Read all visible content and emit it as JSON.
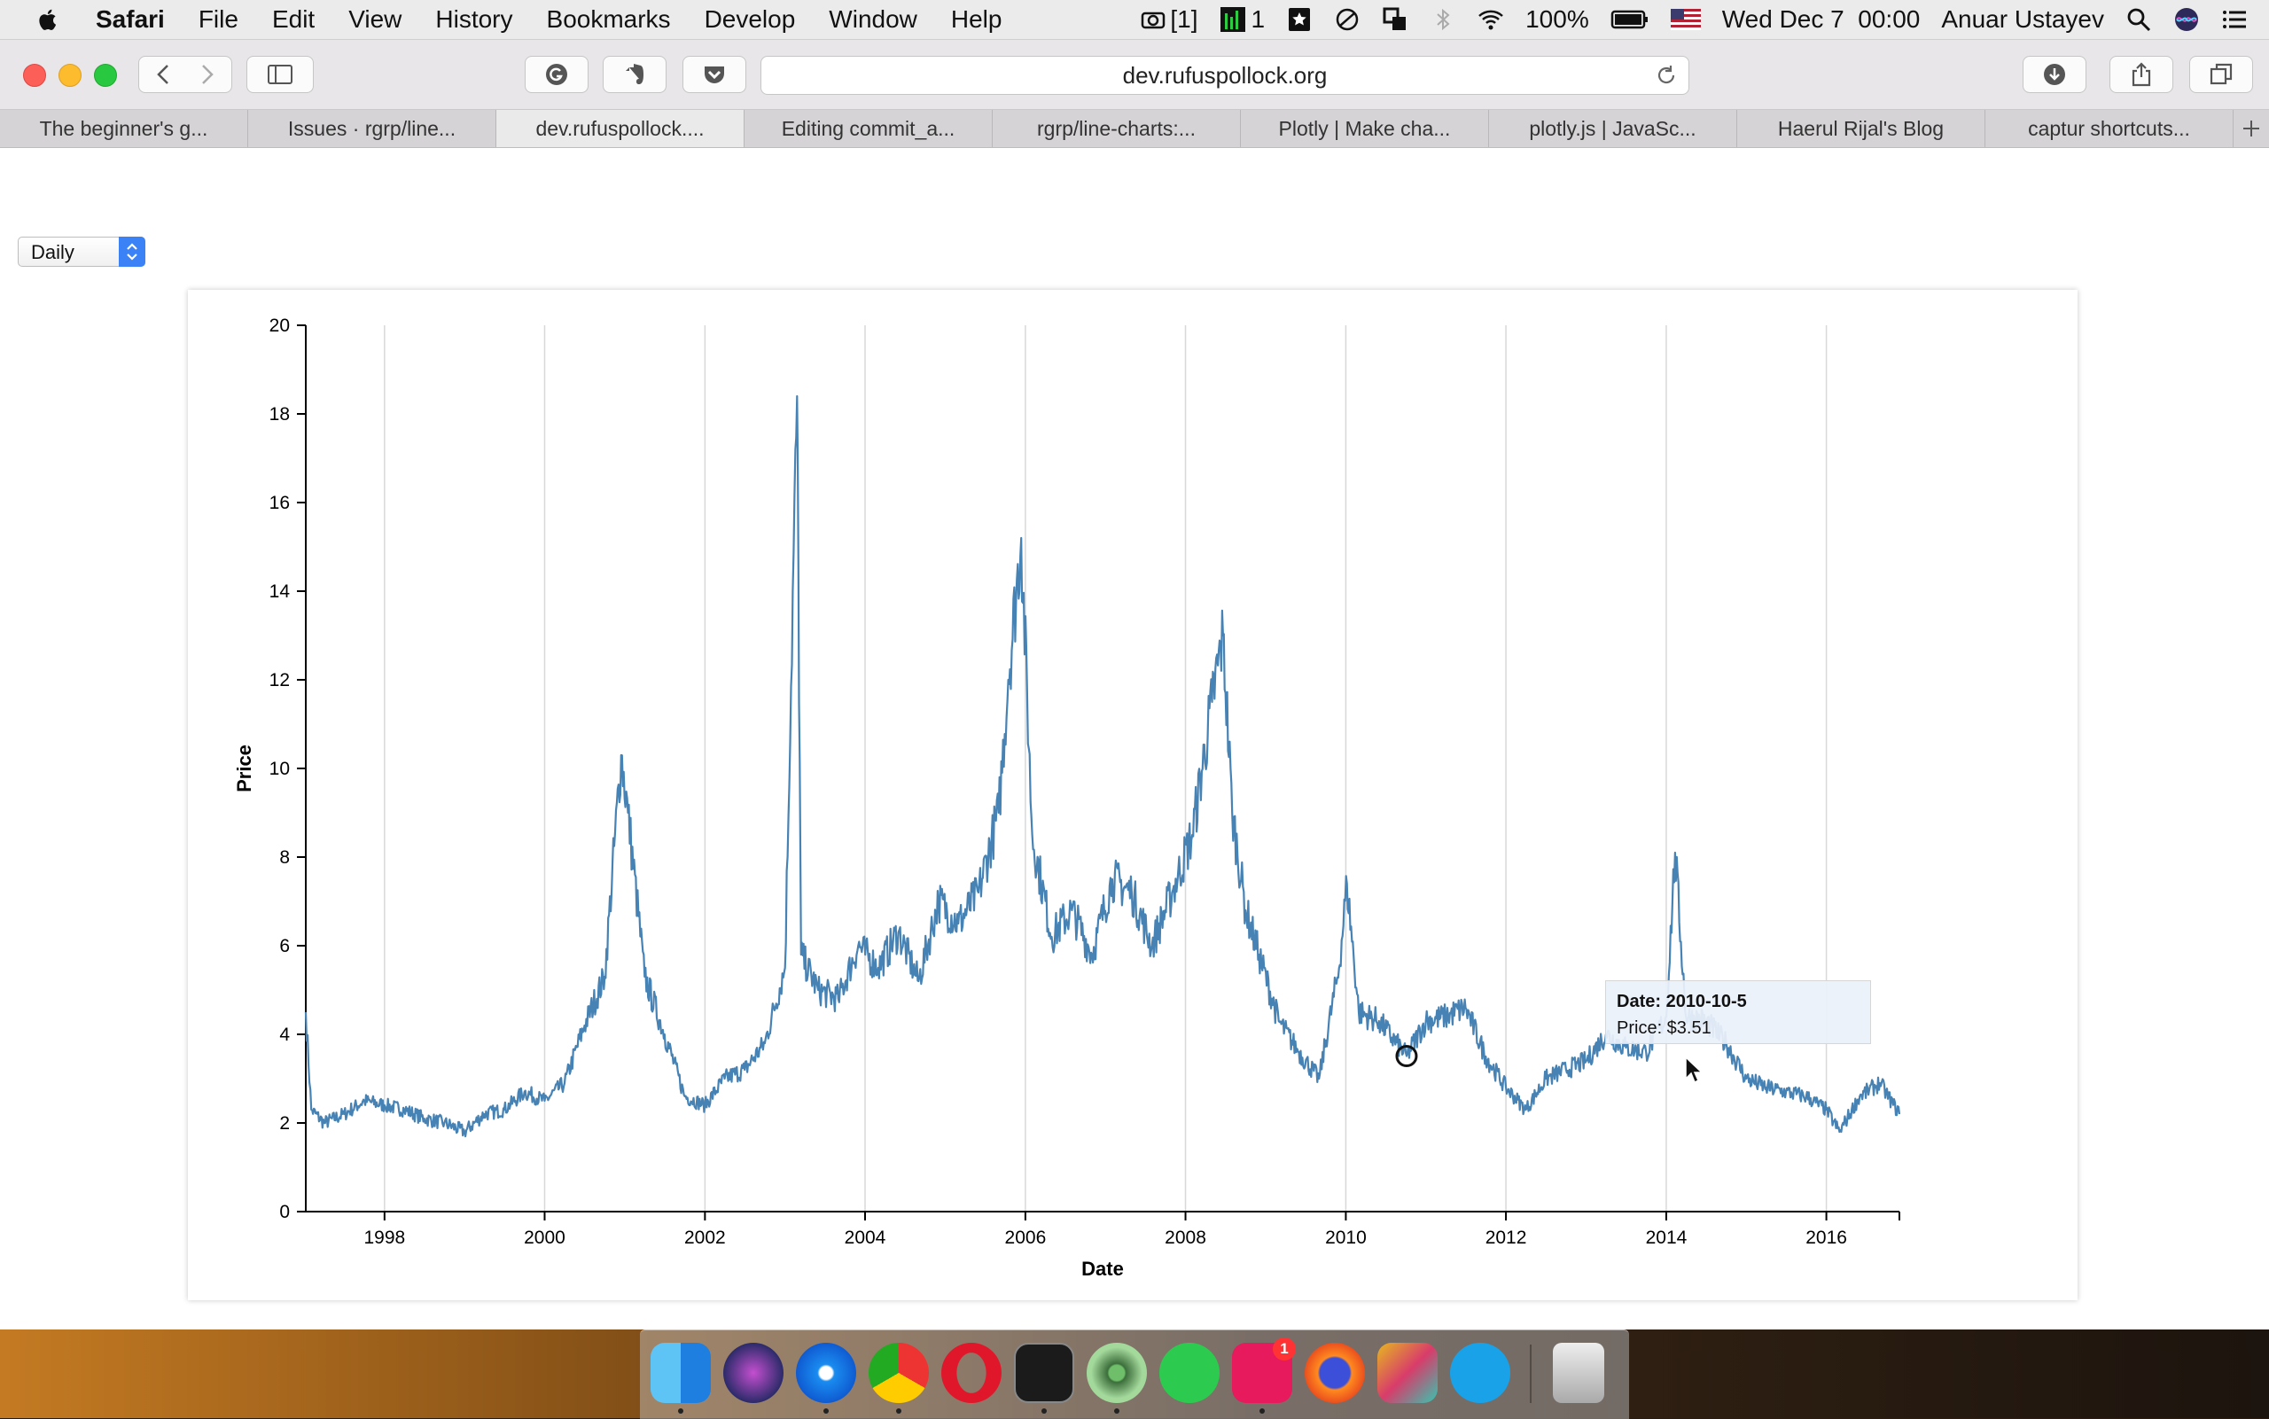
{
  "menubar": {
    "app_name": "Safari",
    "items": [
      "File",
      "Edit",
      "View",
      "History",
      "Bookmarks",
      "Develop",
      "Window",
      "Help"
    ],
    "status": {
      "screenshot_counter": "[1]",
      "cpu_counter": "1",
      "battery": "100%",
      "clock": "Wed Dec 7  00:00",
      "user": "Anuar Ustayev"
    }
  },
  "toolbar": {
    "url": "dev.rufuspollock.org"
  },
  "tabs": [
    {
      "label": "The beginner's g...",
      "active": false
    },
    {
      "label": "Issues · rgrp/line...",
      "active": false
    },
    {
      "label": "dev.rufuspollock....",
      "active": true
    },
    {
      "label": "Editing commit_a...",
      "active": false
    },
    {
      "label": "rgrp/line-charts:...",
      "active": false
    },
    {
      "label": "Plotly | Make cha...",
      "active": false
    },
    {
      "label": "plotly.js | JavaSc...",
      "active": false
    },
    {
      "label": "Haerul Rijal's Blog",
      "active": false
    },
    {
      "label": "captur shortcuts...",
      "active": false
    }
  ],
  "page": {
    "frequency_select": "Daily",
    "tooltip": {
      "date_line": "Date: 2010-10-5",
      "price_line": "Price: $3.51"
    }
  },
  "colors": {
    "series": "#4682b4",
    "grid": "#d8d8d8"
  },
  "dock": {
    "apps": [
      "finder-icon",
      "siri-icon",
      "safari-icon",
      "chrome-icon",
      "opera-icon",
      "terminal-icon",
      "atom-icon",
      "whatsapp-icon",
      "tally-icon",
      "firefox-icon",
      "slides-icon",
      "skype-icon",
      "trash-icon"
    ],
    "badge": "1"
  },
  "chart_data": {
    "type": "line",
    "title": "",
    "xlabel": "Date",
    "ylabel": "Price",
    "xlim": [
      "1997-01-07",
      "2016-11-29"
    ],
    "ylim": [
      0,
      20
    ],
    "x_ticks": [
      "1998",
      "2000",
      "2002",
      "2004",
      "2006",
      "2008",
      "2010",
      "2012",
      "2014",
      "2016"
    ],
    "y_ticks": [
      "0",
      "2",
      "4",
      "6",
      "8",
      "10",
      "12",
      "14",
      "16",
      "18",
      "20"
    ],
    "grid": "vertical",
    "series": [
      {
        "name": "",
        "x": [
          "1997-01-07",
          "1997-02-01",
          "1997-04-01",
          "1997-07-01",
          "1997-10-01",
          "1998-01-01",
          "1998-04-01",
          "1998-07-01",
          "1998-10-01",
          "1999-01-01",
          "1999-04-01",
          "1999-07-01",
          "1999-10-01",
          "2000-01-01",
          "2000-04-01",
          "2000-07-01",
          "2000-10-01",
          "2000-12-15",
          "2001-01-15",
          "2001-04-01",
          "2001-07-01",
          "2001-10-01",
          "2002-01-01",
          "2002-04-01",
          "2002-07-01",
          "2002-10-01",
          "2003-01-01",
          "2003-02-25",
          "2003-03-15",
          "2003-06-01",
          "2003-09-01",
          "2003-12-01",
          "2004-03-01",
          "2004-06-01",
          "2004-09-01",
          "2004-12-01",
          "2005-03-01",
          "2005-06-01",
          "2005-09-01",
          "2005-10-15",
          "2005-12-13",
          "2006-02-01",
          "2006-05-01",
          "2006-08-01",
          "2006-11-01",
          "2007-02-01",
          "2007-05-01",
          "2007-08-01",
          "2007-11-01",
          "2008-02-01",
          "2008-05-01",
          "2008-06-20",
          "2008-08-01",
          "2008-10-01",
          "2008-12-01",
          "2009-03-01",
          "2009-06-01",
          "2009-09-01",
          "2009-12-01",
          "2010-01-06",
          "2010-03-01",
          "2010-06-01",
          "2010-10-05",
          "2011-01-01",
          "2011-04-01",
          "2011-07-01",
          "2011-10-01",
          "2012-01-01",
          "2012-04-01",
          "2012-07-01",
          "2012-10-01",
          "2013-01-01",
          "2013-04-01",
          "2013-07-01",
          "2013-10-01",
          "2014-01-01",
          "2014-02-10",
          "2014-04-01",
          "2014-07-01",
          "2014-10-01",
          "2015-01-01",
          "2015-04-01",
          "2015-07-01",
          "2015-10-01",
          "2016-01-01",
          "2016-03-01",
          "2016-06-01",
          "2016-09-01",
          "2016-11-29"
        ],
        "values": [
          4.5,
          2.3,
          2.0,
          2.2,
          2.5,
          2.4,
          2.3,
          2.1,
          2.0,
          1.8,
          2.2,
          2.3,
          2.7,
          2.5,
          2.9,
          4.2,
          5.3,
          10.3,
          9.0,
          5.3,
          4.0,
          2.6,
          2.4,
          3.0,
          3.2,
          3.8,
          5.5,
          18.4,
          5.8,
          5.0,
          4.8,
          6.0,
          5.5,
          6.3,
          5.2,
          7.0,
          6.5,
          7.2,
          9.0,
          12.0,
          15.2,
          8.5,
          6.2,
          6.8,
          5.8,
          7.5,
          7.2,
          6.0,
          7.2,
          8.5,
          11.5,
          13.0,
          9.0,
          6.8,
          5.8,
          4.3,
          3.6,
          3.0,
          5.5,
          7.4,
          4.5,
          4.3,
          3.51,
          4.3,
          4.4,
          4.6,
          3.5,
          2.8,
          2.3,
          3.0,
          3.2,
          3.4,
          4.0,
          3.7,
          3.6,
          4.4,
          8.1,
          4.4,
          4.3,
          3.8,
          3.0,
          2.8,
          2.7,
          2.6,
          2.3,
          1.8,
          2.6,
          2.9,
          2.2
        ]
      }
    ],
    "annotations": [
      {
        "text": "Date: 2010-10-5 / Price: $3.51",
        "x": "2010-10-05",
        "y": 3.51
      }
    ]
  }
}
